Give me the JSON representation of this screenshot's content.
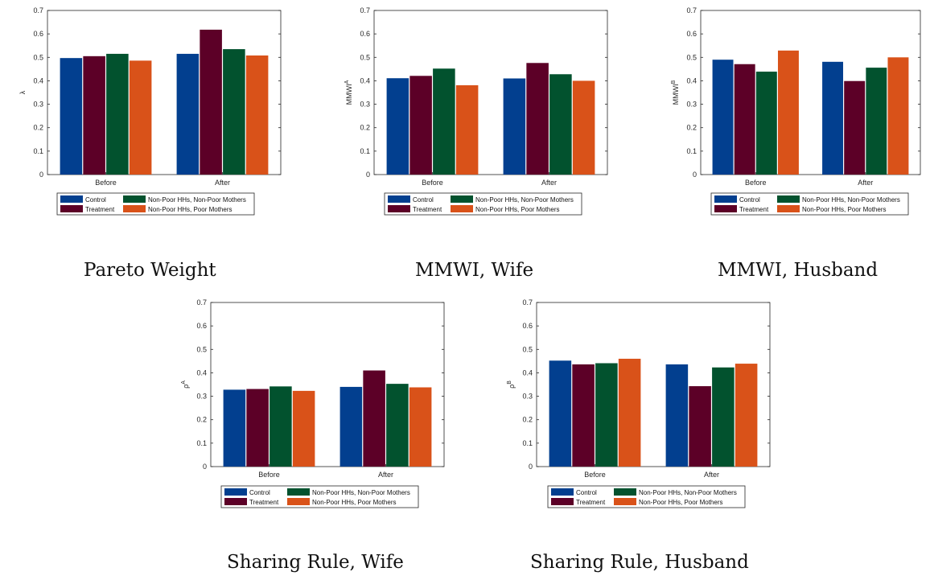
{
  "legend": {
    "entries": [
      "Control",
      "Non-Poor HHs, Non-Poor Mothers",
      "Treatment",
      "Non-Poor HHs, Poor Mothers"
    ]
  },
  "colors": {
    "Control": "#023F8F",
    "Treatment": "#5C0027",
    "Non-Poor HHs, Non-Poor Mothers": "#02522E",
    "Non-Poor HHs, Poor Mothers": "#D95219"
  },
  "chart_data": [
    {
      "type": "bar",
      "caption": "Pareto Weight",
      "ylabel": "λ",
      "ylabel_sup": "",
      "categories": [
        "Before",
        "After"
      ],
      "ylim": [
        0,
        0.7
      ],
      "yticks": [
        "0",
        "0.1",
        "0.2",
        "0.3",
        "0.4",
        "0.5",
        "0.6",
        "0.7"
      ],
      "series": [
        {
          "name": "Control",
          "values": [
            0.497,
            0.515
          ]
        },
        {
          "name": "Treatment",
          "values": [
            0.505,
            0.618
          ]
        },
        {
          "name": "Non-Poor HHs, Non-Poor Mothers",
          "values": [
            0.515,
            0.535
          ]
        },
        {
          "name": "Non-Poor HHs, Poor Mothers",
          "values": [
            0.486,
            0.508
          ]
        }
      ]
    },
    {
      "type": "bar",
      "caption": "MMWI, Wife",
      "ylabel": "MMWI",
      "ylabel_sup": "A",
      "categories": [
        "Before",
        "After"
      ],
      "ylim": [
        0,
        0.7
      ],
      "yticks": [
        "0",
        "0.1",
        "0.2",
        "0.3",
        "0.4",
        "0.5",
        "0.6",
        "0.7"
      ],
      "series": [
        {
          "name": "Control",
          "values": [
            0.411,
            0.41
          ]
        },
        {
          "name": "Treatment",
          "values": [
            0.421,
            0.476
          ]
        },
        {
          "name": "Non-Poor HHs, Non-Poor Mothers",
          "values": [
            0.452,
            0.428
          ]
        },
        {
          "name": "Non-Poor HHs, Poor Mothers",
          "values": [
            0.381,
            0.4
          ]
        }
      ]
    },
    {
      "type": "bar",
      "caption": "MMWI, Husband",
      "ylabel": "MMWI",
      "ylabel_sup": "B",
      "categories": [
        "Before",
        "After"
      ],
      "ylim": [
        0,
        0.7
      ],
      "yticks": [
        "0",
        "0.1",
        "0.2",
        "0.3",
        "0.4",
        "0.5",
        "0.6",
        "0.7"
      ],
      "series": [
        {
          "name": "Control",
          "values": [
            0.49,
            0.481
          ]
        },
        {
          "name": "Treatment",
          "values": [
            0.471,
            0.399
          ]
        },
        {
          "name": "Non-Poor HHs, Non-Poor Mothers",
          "values": [
            0.439,
            0.456
          ]
        },
        {
          "name": "Non-Poor HHs, Poor Mothers",
          "values": [
            0.529,
            0.5
          ]
        }
      ]
    },
    {
      "type": "bar",
      "caption": "Sharing Rule, Wife",
      "ylabel": "ρ",
      "ylabel_sup": "A",
      "categories": [
        "Before",
        "After"
      ],
      "ylim": [
        0,
        0.7
      ],
      "yticks": [
        "0",
        "0.1",
        "0.2",
        "0.3",
        "0.4",
        "0.5",
        "0.6",
        "0.7"
      ],
      "series": [
        {
          "name": "Control",
          "values": [
            0.328,
            0.34
          ]
        },
        {
          "name": "Treatment",
          "values": [
            0.331,
            0.41
          ]
        },
        {
          "name": "Non-Poor HHs, Non-Poor Mothers",
          "values": [
            0.342,
            0.353
          ]
        },
        {
          "name": "Non-Poor HHs, Poor Mothers",
          "values": [
            0.323,
            0.338
          ]
        }
      ]
    },
    {
      "type": "bar",
      "caption": "Sharing Rule, Husband",
      "ylabel": "ρ",
      "ylabel_sup": "B",
      "categories": [
        "Before",
        "After"
      ],
      "ylim": [
        0,
        0.7
      ],
      "yticks": [
        "0",
        "0.1",
        "0.2",
        "0.3",
        "0.4",
        "0.5",
        "0.6",
        "0.7"
      ],
      "series": [
        {
          "name": "Control",
          "values": [
            0.452,
            0.436
          ]
        },
        {
          "name": "Treatment",
          "values": [
            0.436,
            0.343
          ]
        },
        {
          "name": "Non-Poor HHs, Non-Poor Mothers",
          "values": [
            0.441,
            0.423
          ]
        },
        {
          "name": "Non-Poor HHs, Poor Mothers",
          "values": [
            0.46,
            0.439
          ]
        }
      ]
    }
  ]
}
